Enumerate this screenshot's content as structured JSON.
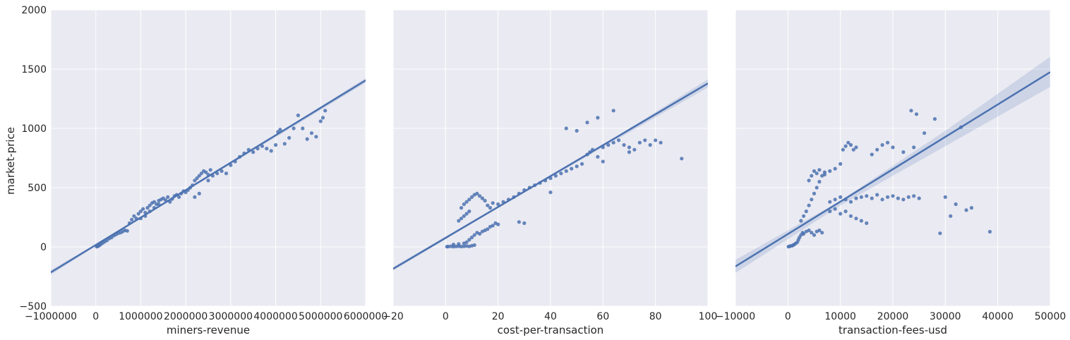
{
  "chart_data": {
    "type": "scatter",
    "subtype": "regression-pairplot",
    "style": {
      "panel_bg": "#eaeaf2",
      "grid": "#ffffff",
      "point_color": "#4c72b0",
      "line_color": "#4c72b0",
      "band_color": "#4c72b0",
      "grid_on": true
    },
    "ylabel": "market-price",
    "ylim": [
      -500,
      2000
    ],
    "yticks": [
      -500,
      0,
      500,
      1000,
      1500,
      2000
    ],
    "ytick_labels": [
      "−500",
      "0",
      "500",
      "1000",
      "1500",
      "2000"
    ],
    "panels": [
      {
        "xlabel": "miners-revenue",
        "xlim": [
          -1000000,
          6000000
        ],
        "xticks": [
          -1000000,
          0,
          1000000,
          2000000,
          3000000,
          4000000,
          5000000,
          6000000
        ],
        "xtick_labels": [
          "−1000000",
          "0",
          "1000000",
          "2000000",
          "3000000",
          "4000000",
          "5000000",
          "6000000"
        ],
        "regression": {
          "x": [
            -1000000,
            6000000
          ],
          "y": [
            -215,
            1405
          ]
        },
        "band": {
          "x": [
            -1000000,
            0,
            2000000,
            4000000,
            6000000
          ],
          "lower": [
            -235,
            8,
            470,
            925,
            1385
          ],
          "upper": [
            -195,
            22,
            480,
            945,
            1425
          ]
        },
        "points": [
          [
            20000,
            2
          ],
          [
            40000,
            5
          ],
          [
            60000,
            8
          ],
          [
            90000,
            15
          ],
          [
            120000,
            25
          ],
          [
            160000,
            35
          ],
          [
            200000,
            45
          ],
          [
            250000,
            55
          ],
          [
            300000,
            70
          ],
          [
            350000,
            80
          ],
          [
            400000,
            95
          ],
          [
            450000,
            105
          ],
          [
            500000,
            115
          ],
          [
            550000,
            120
          ],
          [
            600000,
            130
          ],
          [
            650000,
            140
          ],
          [
            700000,
            135
          ],
          [
            750000,
            200
          ],
          [
            800000,
            230
          ],
          [
            850000,
            260
          ],
          [
            900000,
            240
          ],
          [
            950000,
            280
          ],
          [
            1000000,
            300
          ],
          [
            1050000,
            320
          ],
          [
            1100000,
            290
          ],
          [
            1150000,
            330
          ],
          [
            1200000,
            350
          ],
          [
            1250000,
            370
          ],
          [
            1300000,
            380
          ],
          [
            1350000,
            360
          ],
          [
            1400000,
            390
          ],
          [
            1450000,
            400
          ],
          [
            1500000,
            410
          ],
          [
            1550000,
            395
          ],
          [
            1600000,
            420
          ],
          [
            1650000,
            380
          ],
          [
            1700000,
            405
          ],
          [
            1750000,
            430
          ],
          [
            1800000,
            440
          ],
          [
            1850000,
            420
          ],
          [
            1900000,
            450
          ],
          [
            1950000,
            470
          ],
          [
            2000000,
            460
          ],
          [
            2050000,
            480
          ],
          [
            2100000,
            500
          ],
          [
            2150000,
            520
          ],
          [
            2200000,
            560
          ],
          [
            2250000,
            580
          ],
          [
            2300000,
            600
          ],
          [
            2350000,
            620
          ],
          [
            2400000,
            640
          ],
          [
            2450000,
            630
          ],
          [
            2500000,
            610
          ],
          [
            2550000,
            650
          ],
          [
            2600000,
            600
          ],
          [
            2700000,
            620
          ],
          [
            2800000,
            640
          ],
          [
            2900000,
            620
          ],
          [
            3000000,
            690
          ],
          [
            3100000,
            720
          ],
          [
            3200000,
            760
          ],
          [
            3300000,
            790
          ],
          [
            3400000,
            820
          ],
          [
            3500000,
            800
          ],
          [
            3600000,
            830
          ],
          [
            3700000,
            850
          ],
          [
            3800000,
            830
          ],
          [
            3900000,
            810
          ],
          [
            4000000,
            860
          ],
          [
            4050000,
            970
          ],
          [
            4100000,
            990
          ],
          [
            4200000,
            870
          ],
          [
            4300000,
            920
          ],
          [
            4400000,
            1000
          ],
          [
            4500000,
            1110
          ],
          [
            4600000,
            1000
          ],
          [
            4700000,
            910
          ],
          [
            4800000,
            960
          ],
          [
            4900000,
            930
          ],
          [
            5000000,
            1060
          ],
          [
            5050000,
            1090
          ],
          [
            5100000,
            1150
          ],
          [
            1000000,
            240
          ],
          [
            1100000,
            260
          ],
          [
            1200000,
            300
          ],
          [
            1300000,
            330
          ],
          [
            1400000,
            360
          ],
          [
            2200000,
            420
          ],
          [
            2300000,
            450
          ],
          [
            2500000,
            560
          ]
        ]
      },
      {
        "xlabel": "cost-per-transaction",
        "xlim": [
          -20,
          100
        ],
        "xticks": [
          -20,
          0,
          20,
          40,
          60,
          80,
          100
        ],
        "xtick_labels": [
          "−20",
          "0",
          "20",
          "40",
          "60",
          "80",
          "100"
        ],
        "regression": {
          "x": [
            -20,
            100
          ],
          "y": [
            -185,
            1380
          ]
        },
        "band": {
          "x": [
            -20,
            20,
            60,
            100
          ],
          "lower": [
            -200,
            330,
            840,
            1345
          ],
          "upper": [
            -170,
            345,
            860,
            1415
          ]
        },
        "points": [
          [
            0.5,
            2
          ],
          [
            1,
            3
          ],
          [
            2,
            5
          ],
          [
            3,
            2
          ],
          [
            4,
            4
          ],
          [
            5,
            6
          ],
          [
            6,
            3
          ],
          [
            7,
            5
          ],
          [
            8,
            8
          ],
          [
            9,
            4
          ],
          [
            10,
            10
          ],
          [
            11,
            15
          ],
          [
            3,
            20
          ],
          [
            5,
            25
          ],
          [
            7,
            30
          ],
          [
            8,
            40
          ],
          [
            9,
            60
          ],
          [
            10,
            80
          ],
          [
            11,
            100
          ],
          [
            12,
            120
          ],
          [
            13,
            110
          ],
          [
            14,
            130
          ],
          [
            15,
            140
          ],
          [
            16,
            150
          ],
          [
            17,
            170
          ],
          [
            18,
            180
          ],
          [
            19,
            200
          ],
          [
            20,
            190
          ],
          [
            5,
            220
          ],
          [
            6,
            240
          ],
          [
            7,
            260
          ],
          [
            8,
            280
          ],
          [
            9,
            300
          ],
          [
            6,
            330
          ],
          [
            7,
            360
          ],
          [
            8,
            380
          ],
          [
            9,
            400
          ],
          [
            10,
            420
          ],
          [
            11,
            440
          ],
          [
            12,
            450
          ],
          [
            13,
            430
          ],
          [
            14,
            410
          ],
          [
            15,
            390
          ],
          [
            16,
            350
          ],
          [
            17,
            330
          ],
          [
            18,
            370
          ],
          [
            20,
            360
          ],
          [
            22,
            380
          ],
          [
            24,
            400
          ],
          [
            26,
            420
          ],
          [
            28,
            450
          ],
          [
            30,
            480
          ],
          [
            32,
            500
          ],
          [
            34,
            520
          ],
          [
            36,
            540
          ],
          [
            38,
            560
          ],
          [
            40,
            580
          ],
          [
            42,
            600
          ],
          [
            44,
            620
          ],
          [
            46,
            640
          ],
          [
            48,
            660
          ],
          [
            50,
            680
          ],
          [
            52,
            700
          ],
          [
            54,
            780
          ],
          [
            55,
            800
          ],
          [
            56,
            820
          ],
          [
            58,
            760
          ],
          [
            60,
            840
          ],
          [
            62,
            860
          ],
          [
            64,
            880
          ],
          [
            66,
            900
          ],
          [
            68,
            860
          ],
          [
            70,
            840
          ],
          [
            72,
            820
          ],
          [
            74,
            880
          ],
          [
            76,
            900
          ],
          [
            78,
            860
          ],
          [
            80,
            900
          ],
          [
            82,
            880
          ],
          [
            90,
            745
          ],
          [
            46,
            1000
          ],
          [
            50,
            980
          ],
          [
            54,
            1050
          ],
          [
            58,
            1090
          ],
          [
            64,
            1150
          ],
          [
            60,
            720
          ],
          [
            70,
            800
          ],
          [
            30,
            200
          ],
          [
            28,
            210
          ],
          [
            40,
            460
          ]
        ]
      },
      {
        "xlabel": "transaction-fees-usd",
        "xlim": [
          -10000,
          50000
        ],
        "xticks": [
          -10000,
          0,
          10000,
          20000,
          30000,
          40000,
          50000
        ],
        "xtick_labels": [
          "−10000",
          "0",
          "10000",
          "20000",
          "30000",
          "40000",
          "50000"
        ],
        "regression": {
          "x": [
            -10000,
            50000
          ],
          "y": [
            -165,
            1475
          ]
        },
        "band": {
          "x": [
            -10000,
            10000,
            30000,
            50000
          ],
          "lower": [
            -220,
            350,
            850,
            1350
          ],
          "upper": [
            -110,
            390,
            980,
            1605
          ]
        },
        "points": [
          [
            100,
            2
          ],
          [
            300,
            5
          ],
          [
            500,
            8
          ],
          [
            800,
            10
          ],
          [
            1000,
            15
          ],
          [
            1200,
            20
          ],
          [
            1500,
            30
          ],
          [
            1800,
            40
          ],
          [
            2000,
            60
          ],
          [
            2200,
            80
          ],
          [
            2500,
            100
          ],
          [
            2800,
            120
          ],
          [
            3000,
            110
          ],
          [
            3500,
            130
          ],
          [
            4000,
            140
          ],
          [
            4500,
            120
          ],
          [
            5000,
            100
          ],
          [
            5500,
            130
          ],
          [
            6000,
            140
          ],
          [
            6500,
            120
          ],
          [
            2500,
            220
          ],
          [
            3000,
            260
          ],
          [
            3500,
            300
          ],
          [
            4000,
            350
          ],
          [
            4500,
            400
          ],
          [
            5000,
            450
          ],
          [
            5500,
            500
          ],
          [
            6000,
            550
          ],
          [
            6500,
            600
          ],
          [
            7000,
            630
          ],
          [
            4000,
            560
          ],
          [
            4500,
            600
          ],
          [
            5000,
            640
          ],
          [
            5500,
            620
          ],
          [
            6000,
            650
          ],
          [
            7000,
            610
          ],
          [
            8000,
            640
          ],
          [
            9000,
            660
          ],
          [
            10000,
            700
          ],
          [
            10500,
            820
          ],
          [
            11000,
            850
          ],
          [
            11500,
            880
          ],
          [
            12000,
            860
          ],
          [
            12500,
            820
          ],
          [
            13000,
            840
          ],
          [
            8000,
            380
          ],
          [
            9000,
            400
          ],
          [
            10000,
            420
          ],
          [
            11000,
            400
          ],
          [
            12000,
            380
          ],
          [
            13000,
            410
          ],
          [
            14000,
            420
          ],
          [
            15000,
            430
          ],
          [
            16000,
            410
          ],
          [
            17000,
            440
          ],
          [
            18000,
            400
          ],
          [
            19000,
            420
          ],
          [
            20000,
            430
          ],
          [
            21000,
            410
          ],
          [
            22000,
            400
          ],
          [
            23000,
            420
          ],
          [
            24000,
            430
          ],
          [
            25000,
            410
          ],
          [
            8000,
            300
          ],
          [
            9000,
            320
          ],
          [
            10000,
            280
          ],
          [
            11000,
            300
          ],
          [
            12000,
            260
          ],
          [
            13000,
            240
          ],
          [
            14000,
            220
          ],
          [
            15000,
            200
          ],
          [
            16000,
            780
          ],
          [
            17000,
            820
          ],
          [
            18000,
            860
          ],
          [
            19000,
            880
          ],
          [
            20000,
            840
          ],
          [
            22000,
            800
          ],
          [
            24000,
            840
          ],
          [
            26000,
            960
          ],
          [
            28000,
            1080
          ],
          [
            23500,
            1150
          ],
          [
            24500,
            1120
          ],
          [
            33000,
            1010
          ],
          [
            30000,
            420
          ],
          [
            31000,
            260
          ],
          [
            32000,
            360
          ],
          [
            34000,
            310
          ],
          [
            35000,
            330
          ],
          [
            29000,
            115
          ],
          [
            38500,
            128
          ]
        ]
      }
    ]
  }
}
